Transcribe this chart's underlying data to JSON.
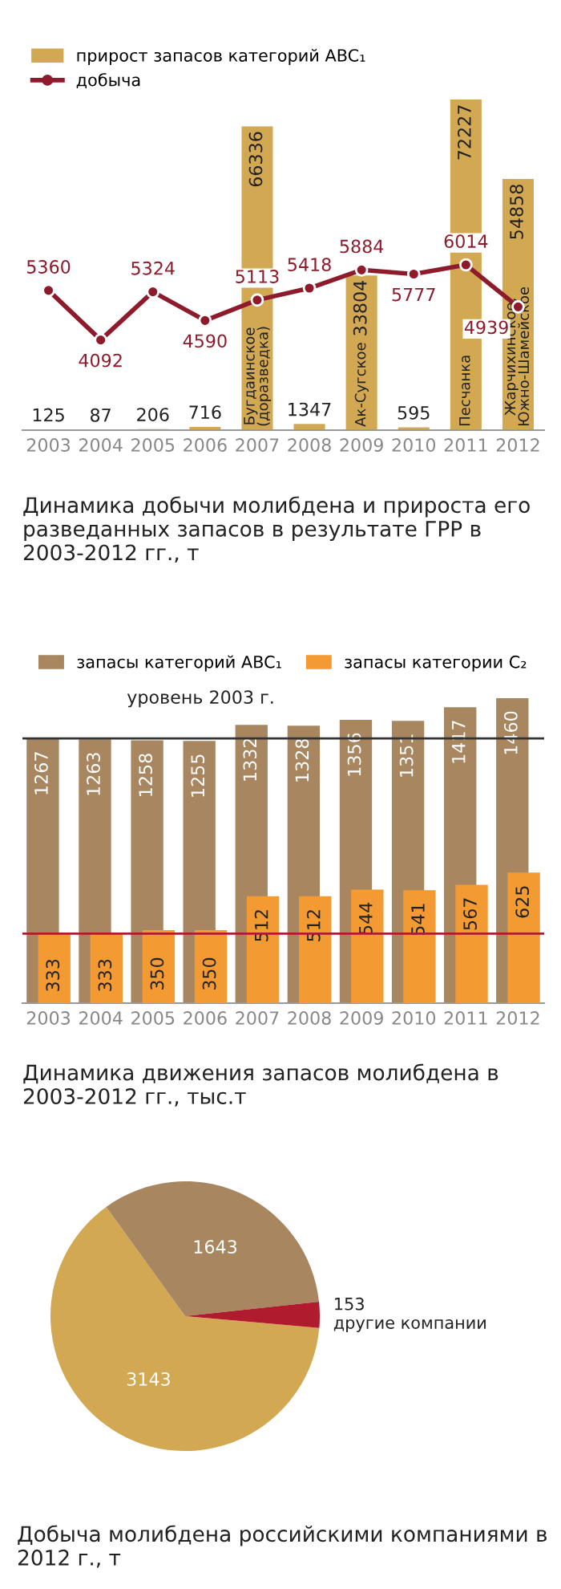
{
  "chart_data": [
    {
      "type": "bar",
      "title": "Динамика добычи молибдена и прироста его разведанных запасов в результате ГРР в 2003-2012 гг., т",
      "categories": [
        "2003",
        "2004",
        "2005",
        "2006",
        "2007",
        "2008",
        "2009",
        "2010",
        "2011",
        "2012"
      ],
      "series": [
        {
          "name": "прирост запасов категорий ABC₁",
          "type": "bar",
          "color": "#d3a853",
          "values": [
            125,
            87,
            206,
            716,
            66336,
            1347,
            33804,
            595,
            72227,
            54858
          ]
        },
        {
          "name": "добыча",
          "type": "line",
          "axis": "y2",
          "color": "#8e1b2c",
          "values": [
            5360,
            4092,
            5324,
            4590,
            5113,
            5418,
            5884,
            5777,
            6014,
            4939
          ]
        }
      ],
      "tick_labels": "x",
      "data_labels": true,
      "marker": "circle",
      "line_style": "solid",
      "legend": "top left",
      "grid": false,
      "annotations": [
        "Бугдаинское (доразведка)",
        "Ак-Сугское",
        "Песчанка",
        "Жарчихинское, Южно-Шамейское"
      ]
    },
    {
      "type": "bar",
      "title": "Динамика движения запасов молибдена в 2003-2012 гг., тыс.т",
      "categories": [
        "2003",
        "2004",
        "2005",
        "2006",
        "2007",
        "2008",
        "2009",
        "2010",
        "2011",
        "2012"
      ],
      "series": [
        {
          "name": "запасы категорий ABC₁",
          "color": "#a88660",
          "values": [
            1267,
            1263,
            1258,
            1255,
            1332,
            1328,
            1356,
            1351,
            1417,
            1460
          ]
        },
        {
          "name": "запасы категории C₂",
          "color": "#f39a32",
          "values": [
            333,
            333,
            350,
            350,
            512,
            512,
            544,
            541,
            567,
            625
          ]
        }
      ],
      "tick_labels": "x",
      "data_labels": true,
      "legend": "top",
      "grid": false,
      "ref_lines": [
        {
          "axis": "y",
          "value": 1267,
          "label": "уровень 2003 г.",
          "color": "#333333"
        },
        {
          "axis": "y",
          "value": 333,
          "color": "#b01c2e"
        }
      ]
    },
    {
      "type": "pie",
      "title": "Добыча молибдена российскими компаниями в 2012 г., т",
      "categories": [
        null,
        null,
        "другие компании"
      ],
      "values": [
        3143,
        1643,
        153
      ],
      "colors": [
        "#d3a853",
        "#a88660",
        "#b01c2e"
      ],
      "data_labels": true,
      "legend": false
    }
  ]
}
